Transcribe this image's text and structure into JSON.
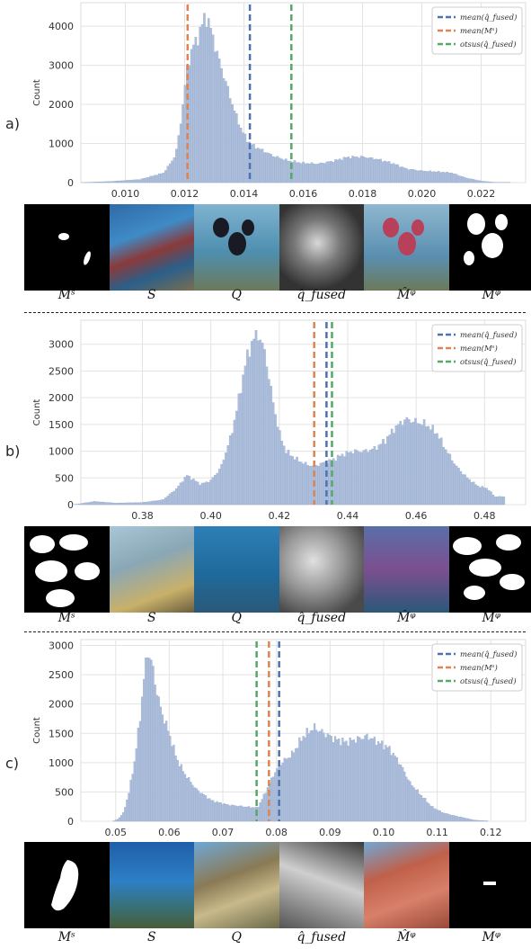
{
  "panels": [
    {
      "label": "a)",
      "captions": [
        "Mˢ",
        "S",
        "Q",
        "q̂_fused",
        "M̂ᵠ",
        "Mᵠ"
      ]
    },
    {
      "label": "b)",
      "captions": [
        "Mˢ",
        "S",
        "Q",
        "q̂_fused",
        "M̂ᵠ",
        "Mᵠ"
      ]
    },
    {
      "label": "c)",
      "captions": [
        "Mˢ",
        "S",
        "Q",
        "q̂_fused",
        "M̂ᵠ",
        "Mᵠ"
      ]
    }
  ],
  "colors": {
    "bar": "#aebfdc",
    "bar_edge": "#8ea3c9",
    "mean_fused": "#4c72b0",
    "mean_ms": "#dd8452",
    "otsu": "#55a868",
    "grid": "#e3e3e3"
  },
  "chart_data": [
    {
      "type": "bar",
      "ylabel": "Count",
      "xlim": [
        0.0085,
        0.0235
      ],
      "ylim": [
        0,
        4600
      ],
      "xticks": [
        "0.010",
        "0.012",
        "0.014",
        "0.016",
        "0.018",
        "0.020",
        "0.022"
      ],
      "yticks": [
        0,
        1000,
        2000,
        3000,
        4000
      ],
      "histogram": {
        "x": [
          0.0095,
          0.0105,
          0.0113,
          0.0117,
          0.0119,
          0.0121,
          0.0123,
          0.0125,
          0.0127,
          0.0129,
          0.0131,
          0.0133,
          0.0135,
          0.0137,
          0.0139,
          0.0141,
          0.0143,
          0.0147,
          0.015,
          0.0155,
          0.016,
          0.0165,
          0.017,
          0.0175,
          0.018,
          0.0185,
          0.019,
          0.0195,
          0.02,
          0.0205,
          0.021,
          0.0215,
          0.022,
          0.0225
        ],
        "y": [
          30,
          80,
          250,
          700,
          1700,
          3000,
          3500,
          3800,
          4300,
          3900,
          3300,
          2800,
          2300,
          1800,
          1400,
          1100,
          950,
          800,
          680,
          560,
          500,
          480,
          550,
          650,
          660,
          600,
          500,
          350,
          300,
          280,
          250,
          120,
          40,
          5
        ]
      },
      "vlines": [
        {
          "name": "mean(q̂_fused)",
          "x": 0.0142,
          "color_key": "mean_fused"
        },
        {
          "name": "mean(Mˢ)",
          "x": 0.0121,
          "color_key": "mean_ms"
        },
        {
          "name": "otsus(q̂_fused)",
          "x": 0.0156,
          "color_key": "otsu"
        }
      ],
      "legend": "top-right",
      "grid": true
    },
    {
      "type": "bar",
      "ylabel": "Count",
      "xlim": [
        0.362,
        0.492
      ],
      "ylim": [
        0,
        3450
      ],
      "xticks": [
        "0.38",
        "0.40",
        "0.42",
        "0.44",
        "0.46",
        "0.48"
      ],
      "yticks": [
        0,
        500,
        1000,
        1500,
        2000,
        2500,
        3000
      ],
      "histogram": {
        "x": [
          0.366,
          0.372,
          0.38,
          0.386,
          0.39,
          0.393,
          0.397,
          0.4,
          0.403,
          0.406,
          0.408,
          0.41,
          0.412,
          0.414,
          0.416,
          0.418,
          0.42,
          0.422,
          0.425,
          0.428,
          0.43,
          0.433,
          0.436,
          0.439,
          0.442,
          0.445,
          0.448,
          0.451,
          0.454,
          0.457,
          0.46,
          0.463,
          0.466,
          0.469,
          0.472,
          0.475,
          0.478,
          0.481,
          0.483
        ],
        "y": [
          60,
          30,
          40,
          90,
          300,
          550,
          380,
          450,
          700,
          1300,
          1900,
          2600,
          3050,
          3200,
          2800,
          2000,
          1350,
          1000,
          850,
          750,
          720,
          780,
          850,
          950,
          1000,
          1000,
          1050,
          1200,
          1450,
          1600,
          1550,
          1500,
          1350,
          1000,
          700,
          500,
          350,
          300,
          150
        ]
      },
      "vlines": [
        {
          "name": "mean(q̂_fused)",
          "x": 0.4338,
          "color_key": "mean_fused"
        },
        {
          "name": "mean(Mˢ)",
          "x": 0.4302,
          "color_key": "mean_ms"
        },
        {
          "name": "otsus(q̂_fused)",
          "x": 0.4354,
          "color_key": "otsu"
        }
      ],
      "legend": "top-right",
      "grid": true
    },
    {
      "type": "bar",
      "ylabel": "Count",
      "xlim": [
        0.0435,
        0.1265
      ],
      "ylim": [
        0,
        3100
      ],
      "xticks": [
        "0.05",
        "0.06",
        "0.07",
        "0.08",
        "0.09",
        "0.10",
        "0.11",
        "0.12"
      ],
      "yticks": [
        0,
        500,
        1000,
        1500,
        2000,
        2500,
        3000
      ],
      "histogram": {
        "x": [
          0.0505,
          0.0515,
          0.0525,
          0.0535,
          0.0545,
          0.0552,
          0.056,
          0.0568,
          0.0575,
          0.0585,
          0.06,
          0.0615,
          0.063,
          0.065,
          0.068,
          0.071,
          0.074,
          0.0765,
          0.078,
          0.0795,
          0.081,
          0.083,
          0.085,
          0.087,
          0.089,
          0.091,
          0.093,
          0.095,
          0.097,
          0.099,
          0.101,
          0.103,
          0.105,
          0.107,
          0.109,
          0.111,
          0.113,
          0.115,
          0.117,
          0.119
        ],
        "y": [
          40,
          150,
          500,
          1000,
          1700,
          2400,
          2900,
          2700,
          2300,
          1900,
          1500,
          1050,
          800,
          550,
          350,
          280,
          250,
          230,
          500,
          800,
          1000,
          1150,
          1450,
          1600,
          1500,
          1400,
          1350,
          1400,
          1450,
          1350,
          1250,
          1000,
          650,
          450,
          250,
          150,
          100,
          60,
          20,
          8
        ]
      },
      "vlines": [
        {
          "name": "mean(q̂_fused)",
          "x": 0.0805,
          "color_key": "mean_fused"
        },
        {
          "name": "mean(Mˢ)",
          "x": 0.0786,
          "color_key": "mean_ms"
        },
        {
          "name": "otsus(q̂_fused)",
          "x": 0.0763,
          "color_key": "otsu"
        }
      ],
      "legend": "top-right",
      "grid": true
    }
  ]
}
